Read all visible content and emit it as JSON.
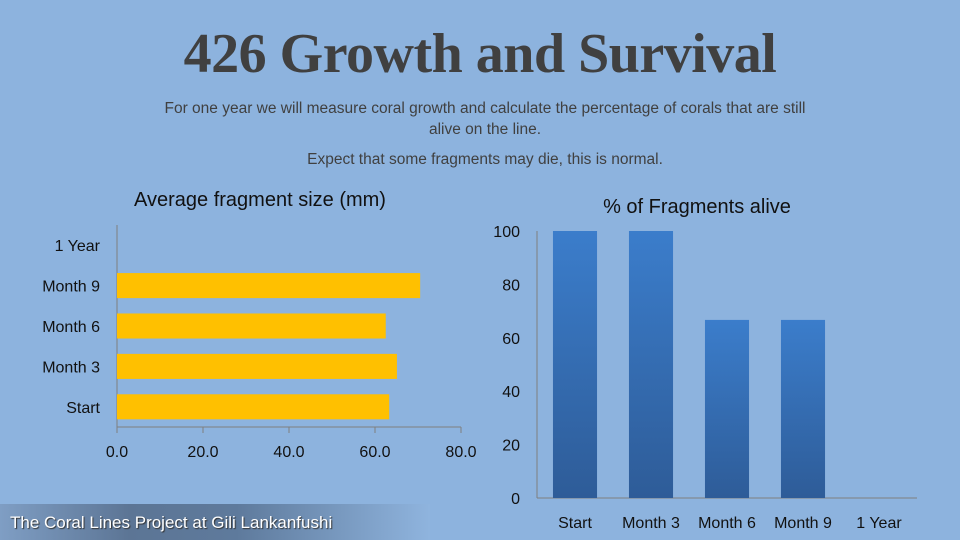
{
  "slide": {
    "title": "426 Growth and Survival",
    "subtitle_line1": "For one year we will measure coral growth and calculate the percentage of corals that are still alive on the line.",
    "subtitle_line2": "Expect that some fragments may die, this is normal.",
    "footer": "The Coral Lines Project at Gili Lankanfushi"
  },
  "colors": {
    "background": "#8db3de",
    "bar_size": "#ffc000",
    "bar_alive_top": "#3b7dcb",
    "bar_alive_bottom": "#2e5c98"
  },
  "chart_data": [
    {
      "type": "bar",
      "orientation": "horizontal",
      "title": "Average fragment size (mm)",
      "categories": [
        "Start",
        "Month 3",
        "Month 6",
        "Month 9",
        "1 Year"
      ],
      "values": [
        63.3,
        65.1,
        62.5,
        70.5,
        null
      ],
      "xlim": [
        0,
        80
      ],
      "xticks": [
        "0.0",
        "20.0",
        "40.0",
        "60.0",
        "80.0"
      ],
      "grid": false
    },
    {
      "type": "bar",
      "orientation": "vertical",
      "title": "% of Fragments alive",
      "categories": [
        "Start",
        "Month 3",
        "Month 6",
        "Month 9",
        "1 Year"
      ],
      "values": [
        100,
        100,
        66.7,
        66.7,
        null
      ],
      "ylim": [
        0,
        100
      ],
      "yticks": [
        "0",
        "20",
        "40",
        "60",
        "80",
        "100"
      ],
      "grid": false
    }
  ]
}
